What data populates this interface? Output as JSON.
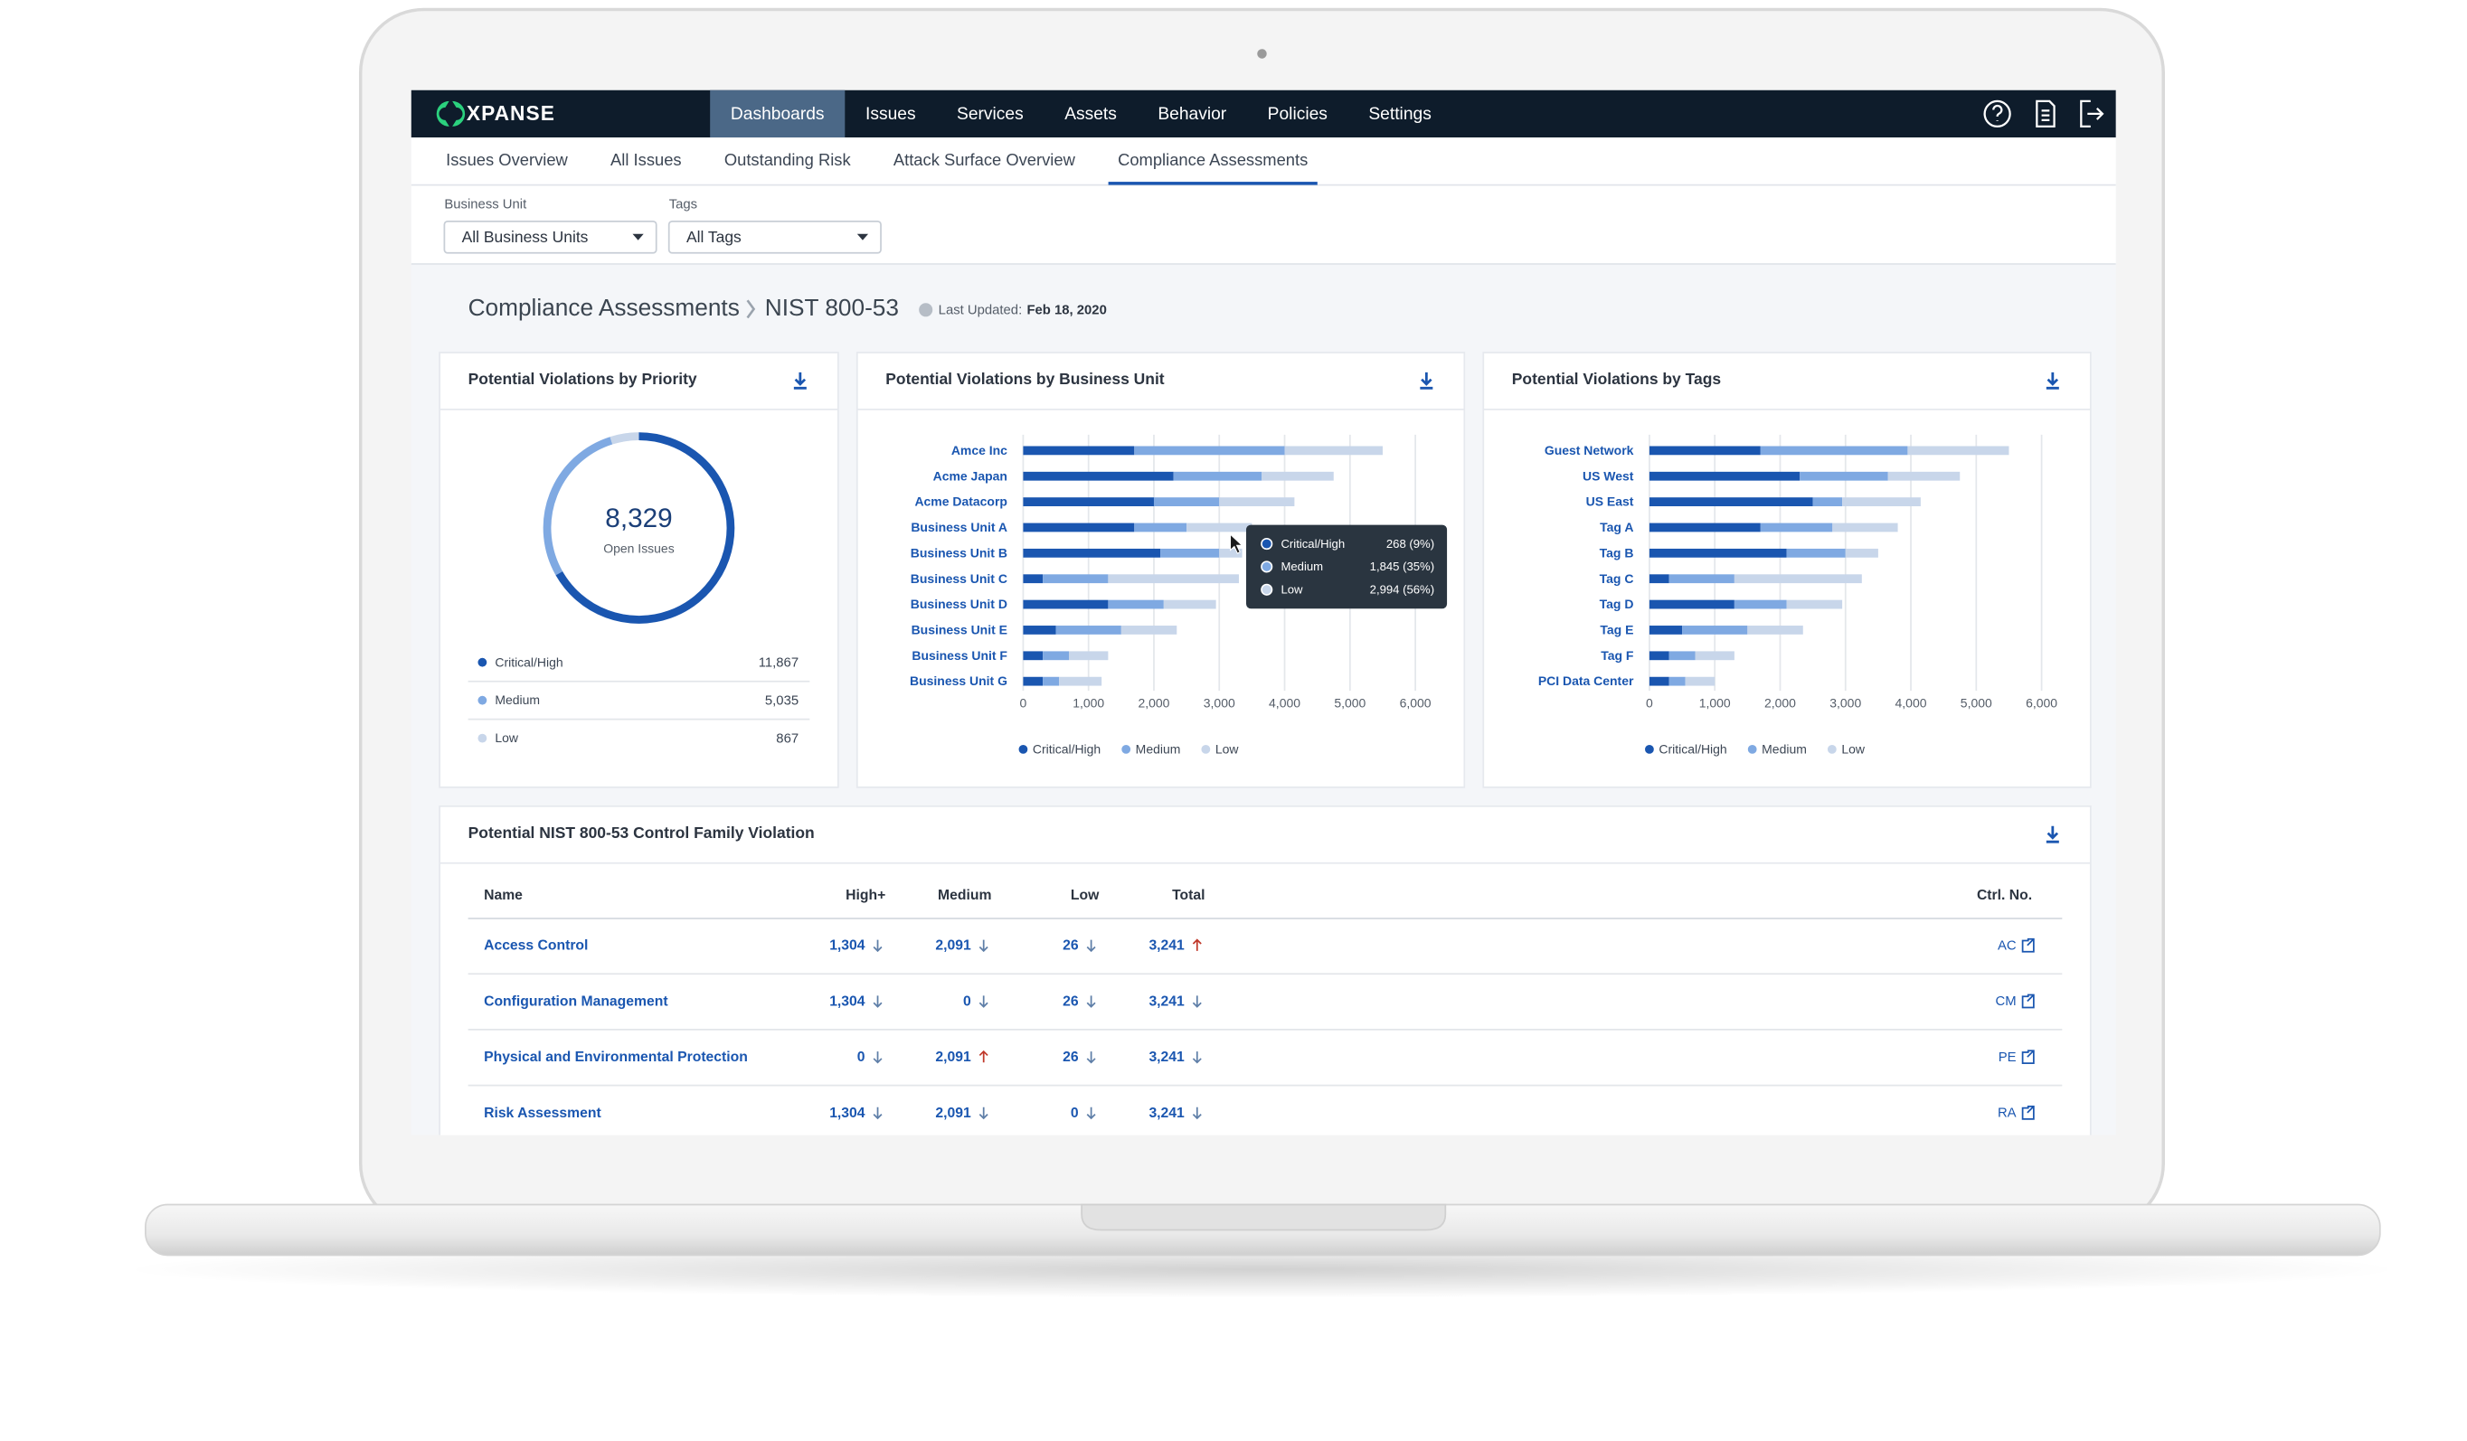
{
  "nav": {
    "logo": "XPANSE",
    "items": [
      "Dashboards",
      "Issues",
      "Services",
      "Assets",
      "Behavior",
      "Policies",
      "Settings"
    ],
    "active": 0
  },
  "tabs": {
    "items": [
      "Issues Overview",
      "All Issues",
      "Outstanding Risk",
      "Attack Surface Overview",
      "Compliance Assessments"
    ],
    "active": 4
  },
  "filters": [
    {
      "label": "Business Unit",
      "value": "All Business Units"
    },
    {
      "label": "Tags",
      "value": "All Tags"
    }
  ],
  "breadcrumb": [
    "Compliance Assessments",
    "NIST 800-53"
  ],
  "last_updated": {
    "label": "Last Updated:",
    "value": "Feb 18, 2020"
  },
  "chart_data": [
    {
      "type": "donut",
      "title": "Potential Violations by Priority",
      "center_value": "8,329",
      "center_label": "Open Issues",
      "categories": [
        "Critical/High",
        "Medium",
        "Low"
      ],
      "values": [
        11867,
        5035,
        867
      ],
      "value_labels": [
        "11,867",
        "5,035",
        "867"
      ],
      "colors": [
        "#1a56b0",
        "#7fa9e2",
        "#c8d6ea"
      ]
    },
    {
      "type": "hbar",
      "title": "Potential Violations by Business Unit",
      "stacked": true,
      "grid": true,
      "categories": [
        "Amce Inc",
        "Acme Japan",
        "Acme Datacorp",
        "Business Unit A",
        "Business Unit B",
        "Business Unit C",
        "Business Unit D",
        "Business Unit E",
        "Business Unit F",
        "Business Unit G"
      ],
      "series": [
        {
          "name": "Critical/High",
          "color": "#1a56b0",
          "values": [
            1700,
            2300,
            2000,
            1700,
            2100,
            300,
            1300,
            500,
            300,
            300
          ]
        },
        {
          "name": "Medium",
          "color": "#7fa9e2",
          "values": [
            2300,
            1350,
            1000,
            800,
            900,
            1000,
            850,
            1000,
            400,
            250
          ]
        },
        {
          "name": "Low",
          "color": "#c8d6ea",
          "values": [
            1500,
            1100,
            1150,
            1000,
            350,
            2000,
            800,
            850,
            600,
            650
          ]
        }
      ],
      "xlim": [
        0,
        6000
      ],
      "xticks": [
        0,
        {
          "value": 1000,
          "label": "1,000"
        },
        {
          "value": 2000,
          "label": "2,000"
        },
        {
          "value": 3000,
          "label": "3,000"
        },
        {
          "value": 4000,
          "label": "4,000"
        },
        {
          "value": 5000,
          "label": "5,000"
        },
        {
          "value": 6000,
          "label": "6,000"
        }
      ],
      "tooltip": [
        {
          "name": "Critical/High",
          "value": "268 (9%)"
        },
        {
          "name": "Medium",
          "value": "1,845 (35%)"
        },
        {
          "name": "Low",
          "value": "2,994 (56%)"
        }
      ]
    },
    {
      "type": "hbar",
      "title": "Potential Violations by Tags",
      "stacked": true,
      "grid": true,
      "categories": [
        "Guest Network",
        "US West",
        "US East",
        "Tag A",
        "Tag B",
        "Tag C",
        "Tag D",
        "Tag E",
        "Tag F",
        "PCI Data Center"
      ],
      "series": [
        {
          "name": "Critical/High",
          "color": "#1a56b0",
          "values": [
            1700,
            2300,
            2500,
            1700,
            2100,
            300,
            1300,
            500,
            300,
            300
          ]
        },
        {
          "name": "Medium",
          "color": "#7fa9e2",
          "values": [
            2250,
            1350,
            450,
            1100,
            900,
            1000,
            800,
            1000,
            400,
            250
          ]
        },
        {
          "name": "Low",
          "color": "#c8d6ea",
          "values": [
            1550,
            1100,
            1200,
            1000,
            500,
            1950,
            850,
            850,
            600,
            450
          ]
        }
      ],
      "xlim": [
        0,
        6000
      ],
      "xticks": [
        0,
        {
          "value": 1000,
          "label": "1,000"
        },
        {
          "value": 2000,
          "label": "2,000"
        },
        {
          "value": 3000,
          "label": "3,000"
        },
        {
          "value": 4000,
          "label": "4,000"
        },
        {
          "value": 5000,
          "label": "5,000"
        },
        {
          "value": 6000,
          "label": "6,000"
        }
      ]
    }
  ],
  "table": {
    "title": "Potential NIST 800-53 Control Family Violation",
    "columns": [
      "Name",
      "High+",
      "Medium",
      "Low",
      "Total",
      "Ctrl. No."
    ],
    "rows": [
      {
        "name": "Access Control",
        "cells": [
          {
            "value": "1,304",
            "trend": "down"
          },
          {
            "value": "2,091",
            "trend": "down"
          },
          {
            "value": "26",
            "trend": "down"
          },
          {
            "value": "3,241",
            "trend": "up"
          }
        ],
        "ctrl": "AC"
      },
      {
        "name": "Configuration Management",
        "cells": [
          {
            "value": "1,304",
            "trend": "down"
          },
          {
            "value": "0",
            "trend": "down"
          },
          {
            "value": "26",
            "trend": "down"
          },
          {
            "value": "3,241",
            "trend": "down"
          }
        ],
        "ctrl": "CM"
      },
      {
        "name": "Physical and Environmental Protection",
        "cells": [
          {
            "value": "0",
            "trend": "down"
          },
          {
            "value": "2,091",
            "trend": "up"
          },
          {
            "value": "26",
            "trend": "down"
          },
          {
            "value": "3,241",
            "trend": "down"
          }
        ],
        "ctrl": "PE"
      },
      {
        "name": "Risk Assessment",
        "cells": [
          {
            "value": "1,304",
            "trend": "down"
          },
          {
            "value": "2,091",
            "trend": "down"
          },
          {
            "value": "0",
            "trend": "down"
          },
          {
            "value": "3,241",
            "trend": "down"
          }
        ],
        "ctrl": "RA"
      }
    ]
  }
}
